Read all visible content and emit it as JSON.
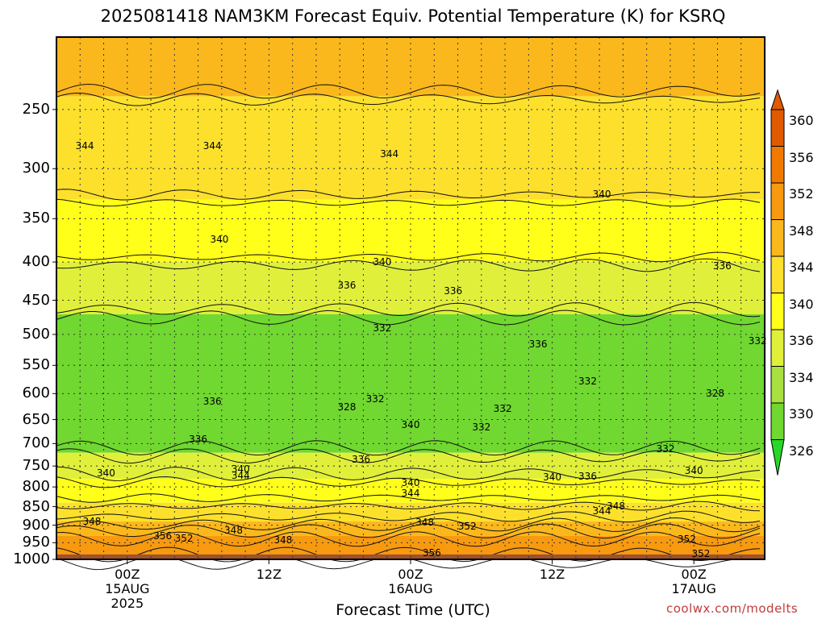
{
  "title": "2025081418 NAM3KM Forecast Equiv. Potential Temperature (K) for KSRQ",
  "credit": "coolwx.com/modelts",
  "colors": {
    "frame": "#000000",
    "ground": "#a0522d",
    "contour": "#111111",
    "grid": "#333333"
  },
  "chart_data": {
    "type": "heatmap",
    "title": "2025081418 NAM3KM Forecast Equiv. Potential Temperature (K) for KSRQ",
    "xlabel": "Forecast Time (UTC)",
    "ylabel": "",
    "y_scale": "pressure (hPa), inverted, log-like",
    "ylim": [
      1000,
      200
    ],
    "y_ticks": [
      "250",
      "300",
      "350",
      "400",
      "450",
      "500",
      "550",
      "600",
      "650",
      "700",
      "750",
      "800",
      "850",
      "900",
      "950",
      "1000"
    ],
    "x_ticks": [
      {
        "line1": "00Z",
        "line2": "15AUG",
        "line3": "2025"
      },
      {
        "line1": "12Z",
        "line2": "",
        "line3": ""
      },
      {
        "line1": "00Z",
        "line2": "16AUG",
        "line3": ""
      },
      {
        "line1": "12Z",
        "line2": "",
        "line3": ""
      },
      {
        "line1": "00Z",
        "line2": "17AUG",
        "line3": ""
      }
    ],
    "grid": true,
    "colorbar": {
      "units": "K",
      "levels": [
        "360",
        "356",
        "352",
        "348",
        "344",
        "340",
        "336",
        "334",
        "330",
        "326"
      ],
      "colors": [
        "#e05a00",
        "#f07a00",
        "#f79a10",
        "#fbb81c",
        "#fde02c",
        "#ffff1a",
        "#e0f03a",
        "#a8e040",
        "#70d830",
        "#28d828"
      ]
    },
    "layers": [
      {
        "p_top": 200,
        "p_bottom": 240,
        "value": 348
      },
      {
        "p_top": 240,
        "p_bottom": 330,
        "value": 344
      },
      {
        "p_top": 330,
        "p_bottom": 400,
        "value": 340
      },
      {
        "p_top": 400,
        "p_bottom": 470,
        "value": 337
      },
      {
        "p_top": 470,
        "p_bottom": 720,
        "value": 333
      },
      {
        "p_top": 720,
        "p_bottom": 780,
        "value": 337
      },
      {
        "p_top": 780,
        "p_bottom": 840,
        "value": 341
      },
      {
        "p_top": 840,
        "p_bottom": 890,
        "value": 345
      },
      {
        "p_top": 890,
        "p_bottom": 930,
        "value": 349
      },
      {
        "p_top": 930,
        "p_bottom": 1000,
        "value": 353
      }
    ],
    "contour_labels": [
      {
        "text": "344",
        "x": 0.04,
        "p": 280
      },
      {
        "text": "344",
        "x": 0.22,
        "p": 280
      },
      {
        "text": "344",
        "x": 0.47,
        "p": 287
      },
      {
        "text": "340",
        "x": 0.77,
        "p": 325
      },
      {
        "text": "340",
        "x": 0.23,
        "p": 373
      },
      {
        "text": "340",
        "x": 0.46,
        "p": 400
      },
      {
        "text": "336",
        "x": 0.94,
        "p": 405
      },
      {
        "text": "336",
        "x": 0.41,
        "p": 430
      },
      {
        "text": "336",
        "x": 0.56,
        "p": 437
      },
      {
        "text": "332",
        "x": 0.46,
        "p": 490
      },
      {
        "text": "336",
        "x": 0.68,
        "p": 515
      },
      {
        "text": "332",
        "x": 0.99,
        "p": 510
      },
      {
        "text": "332",
        "x": 0.75,
        "p": 577
      },
      {
        "text": "328",
        "x": 0.93,
        "p": 600
      },
      {
        "text": "336",
        "x": 0.22,
        "p": 615
      },
      {
        "text": "332",
        "x": 0.45,
        "p": 610
      },
      {
        "text": "328",
        "x": 0.41,
        "p": 625
      },
      {
        "text": "332",
        "x": 0.63,
        "p": 628
      },
      {
        "text": "340",
        "x": 0.5,
        "p": 660
      },
      {
        "text": "332",
        "x": 0.6,
        "p": 665
      },
      {
        "text": "336",
        "x": 0.2,
        "p": 690
      },
      {
        "text": "332",
        "x": 0.86,
        "p": 712
      },
      {
        "text": "336",
        "x": 0.43,
        "p": 735
      },
      {
        "text": "340",
        "x": 0.26,
        "p": 757
      },
      {
        "text": "344",
        "x": 0.26,
        "p": 773
      },
      {
        "text": "340",
        "x": 0.9,
        "p": 760
      },
      {
        "text": "340",
        "x": 0.07,
        "p": 767
      },
      {
        "text": "340",
        "x": 0.7,
        "p": 777
      },
      {
        "text": "336",
        "x": 0.75,
        "p": 775
      },
      {
        "text": "340",
        "x": 0.5,
        "p": 790
      },
      {
        "text": "344",
        "x": 0.5,
        "p": 815
      },
      {
        "text": "348",
        "x": 0.79,
        "p": 848
      },
      {
        "text": "344",
        "x": 0.77,
        "p": 862
      },
      {
        "text": "348",
        "x": 0.05,
        "p": 890
      },
      {
        "text": "348",
        "x": 0.52,
        "p": 893
      },
      {
        "text": "352",
        "x": 0.58,
        "p": 903
      },
      {
        "text": "348",
        "x": 0.25,
        "p": 915
      },
      {
        "text": "356",
        "x": 0.15,
        "p": 930
      },
      {
        "text": "352",
        "x": 0.18,
        "p": 937
      },
      {
        "text": "348",
        "x": 0.32,
        "p": 943
      },
      {
        "text": "352",
        "x": 0.89,
        "p": 940
      },
      {
        "text": "356",
        "x": 0.53,
        "p": 980
      },
      {
        "text": "352",
        "x": 0.91,
        "p": 983
      }
    ]
  }
}
